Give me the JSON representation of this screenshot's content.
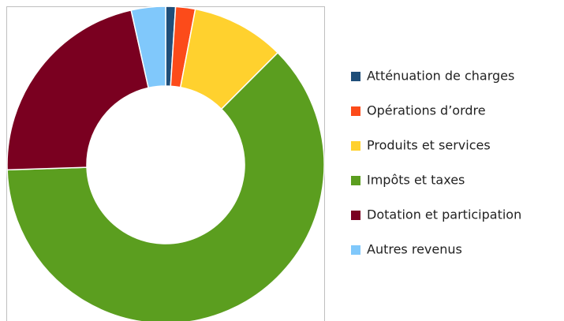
{
  "chart_data": {
    "type": "donut",
    "categories": [
      "Atténuation de charges",
      "Opérations d’ordre",
      "Produits et services",
      "Impôts et taxes",
      "Dotation et participation",
      "Autres revenus"
    ],
    "values": [
      1,
      2,
      9.5,
      62,
      22,
      3.5
    ],
    "colors": [
      "#1f4e79",
      "#fc4b1a",
      "#ffd12e",
      "#5b9e1f",
      "#7a0020",
      "#80c8fb"
    ]
  }
}
